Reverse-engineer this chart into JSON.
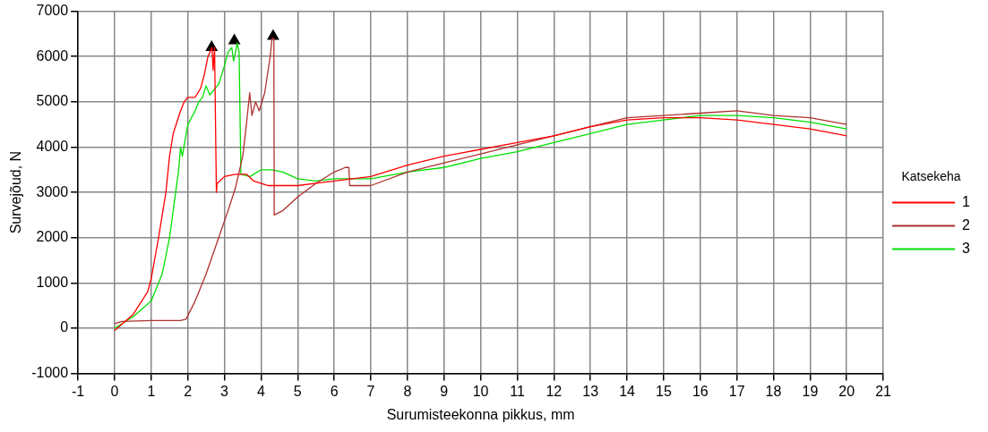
{
  "chart_data": {
    "type": "line",
    "xlabel": "Surumisteekonna pikkus, mm",
    "ylabel": "Survejõud, N",
    "legend_title": "Katsekeha",
    "legend": "right",
    "grid": true,
    "marker": "none",
    "line_style": "solid",
    "xlim": [
      -1,
      21
    ],
    "xticks": [
      -1,
      0,
      1,
      2,
      3,
      4,
      5,
      6,
      7,
      8,
      9,
      10,
      11,
      12,
      13,
      14,
      15,
      16,
      17,
      18,
      19,
      20,
      21
    ],
    "ylim": [
      -1000,
      7000
    ],
    "yticks": [
      -1000,
      0,
      1000,
      2000,
      3000,
      4000,
      5000,
      6000,
      7000
    ],
    "series": [
      {
        "name": "1",
        "color": "#ff0000",
        "x": [
          0,
          0.5,
          0.9,
          1.0,
          1.2,
          1.4,
          1.5,
          1.6,
          1.8,
          1.9,
          2.0,
          2.2,
          2.35,
          2.45,
          2.55,
          2.66,
          2.69,
          2.73,
          2.78,
          2.8,
          3.0,
          3.3,
          3.6,
          3.8,
          4.2,
          5,
          5.5,
          6,
          7,
          8,
          9,
          10,
          11,
          12,
          13,
          14,
          15,
          16,
          17,
          18,
          19,
          20
        ],
        "values": [
          -50,
          300,
          800,
          1100,
          2000,
          3000,
          3800,
          4300,
          4800,
          5000,
          5100,
          5100,
          5300,
          5600,
          6000,
          6200,
          5700,
          6200,
          3000,
          3200,
          3350,
          3400,
          3400,
          3250,
          3150,
          3150,
          3200,
          3250,
          3350,
          3600,
          3800,
          3950,
          4100,
          4250,
          4450,
          4600,
          4650,
          4650,
          4600,
          4500,
          4400,
          4250
        ]
      },
      {
        "name": "2",
        "color": "#b03030",
        "x": [
          0,
          0.2,
          1,
          1.8,
          1.95,
          2.2,
          2.5,
          2.8,
          3.1,
          3.3,
          3.5,
          3.6,
          3.69,
          3.75,
          3.85,
          3.95,
          4.1,
          4.25,
          4.3,
          4.35,
          4.36,
          4.6,
          5,
          5.5,
          6,
          6.3,
          6.4,
          6.42,
          7,
          8,
          9,
          10,
          11,
          12,
          13,
          14,
          15,
          16,
          17,
          18,
          19,
          20
        ],
        "values": [
          100,
          150,
          170,
          170,
          200,
          600,
          1200,
          1900,
          2600,
          3100,
          3800,
          4500,
          5200,
          4700,
          5000,
          4800,
          5200,
          6000,
          6400,
          6400,
          2500,
          2600,
          2900,
          3200,
          3450,
          3550,
          3550,
          3150,
          3150,
          3450,
          3650,
          3850,
          4050,
          4250,
          4450,
          4650,
          4700,
          4750,
          4800,
          4700,
          4650,
          4500
        ]
      },
      {
        "name": "3",
        "color": "#00e000",
        "x": [
          0,
          0.5,
          1,
          1.3,
          1.5,
          1.6,
          1.75,
          1.8,
          1.85,
          2.0,
          2.2,
          2.3,
          2.4,
          2.5,
          2.6,
          2.7,
          2.85,
          3.0,
          3.1,
          3.2,
          3.25,
          3.35,
          3.4,
          3.45,
          3.7,
          4.0,
          4.3,
          4.6,
          5,
          5.5,
          6,
          7,
          8,
          9,
          10,
          11,
          12,
          13,
          14,
          15,
          16,
          17,
          18,
          19,
          20
        ],
        "values": [
          0,
          250,
          600,
          1200,
          2000,
          2600,
          3500,
          4000,
          3800,
          4500,
          4800,
          5000,
          5100,
          5350,
          5150,
          5250,
          5400,
          5800,
          6100,
          6200,
          5900,
          6300,
          6100,
          3400,
          3350,
          3500,
          3500,
          3450,
          3300,
          3250,
          3300,
          3300,
          3450,
          3550,
          3750,
          3900,
          4100,
          4300,
          4500,
          4600,
          4700,
          4700,
          4650,
          4550,
          4400
        ]
      },
      {
        "type": "scatter",
        "marker": "triangle",
        "color": "#000000",
        "x": [
          2.65,
          3.27,
          4.33
        ],
        "values": [
          6200,
          6350,
          6450
        ]
      }
    ]
  }
}
